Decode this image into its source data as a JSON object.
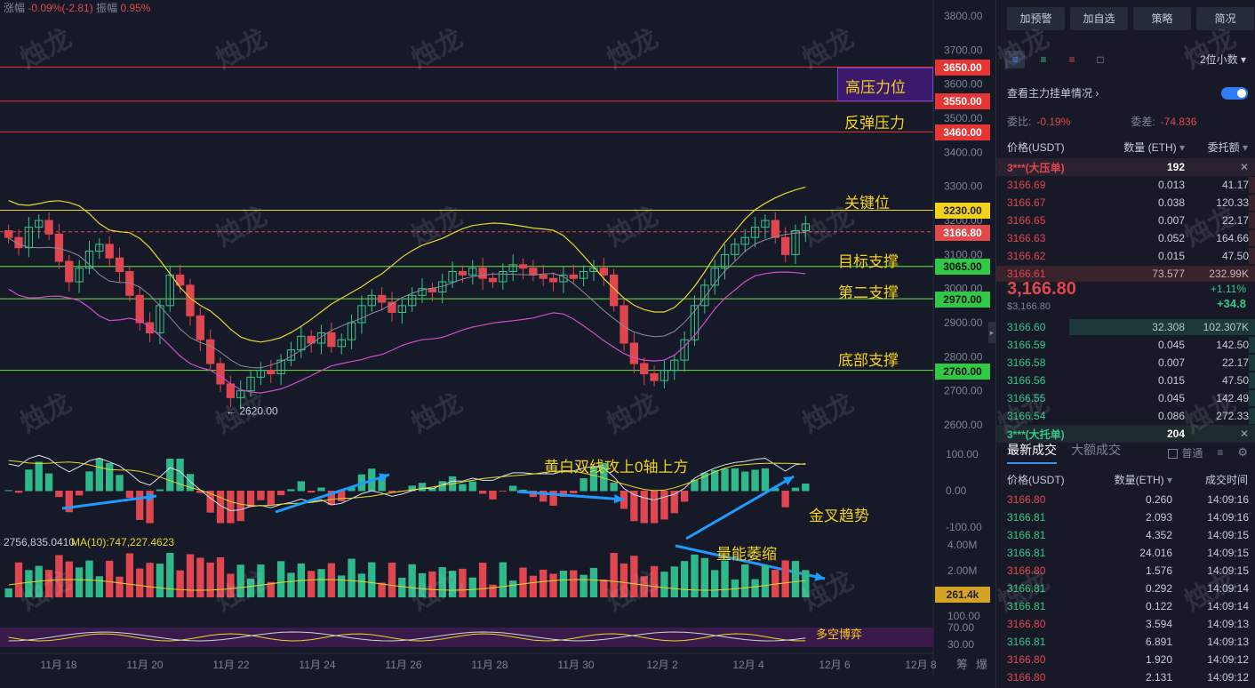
{
  "topbar": {
    "change_label": "涨幅",
    "change_value": "-0.09%(-2.81)",
    "amplitude_label": "振幅",
    "amplitude_value": "0.95%"
  },
  "price_axis": [
    "3800.00",
    "3700.00",
    "3600.00",
    "3500.00",
    "3400.00",
    "3300.00",
    "3200.00",
    "3100.00",
    "3000.00",
    "2900.00",
    "2800.00",
    "2700.00",
    "2600.00"
  ],
  "macd_axis": [
    "100.00",
    "0.00",
    "-100.00"
  ],
  "volume_axis": [
    "4.00M",
    "2.00M"
  ],
  "osc_axis": [
    "100.00",
    "70.00",
    "30.00"
  ],
  "date_axis": [
    "11月 18",
    "11月 20",
    "11月 22",
    "11月 24",
    "11月 26",
    "11月 28",
    "11月 30",
    "12月 2",
    "12月 4",
    "12月 6",
    "12月 8"
  ],
  "bottom_right_icons": [
    "筹",
    "爆"
  ],
  "volume_ma_label": "2756,835.0410",
  "volume_ma10_label": "MA(10):747,227.4623",
  "levels": [
    {
      "value": "3650.00",
      "color": "red",
      "price": 3650
    },
    {
      "value": "3550.00",
      "color": "red",
      "price": 3550
    },
    {
      "value": "3460.00",
      "color": "red",
      "price": 3460
    },
    {
      "value": "3230.00",
      "color": "yellow",
      "price": 3230
    },
    {
      "value": "3065.00",
      "color": "green",
      "price": 3065
    },
    {
      "value": "2970.00",
      "color": "green",
      "price": 2970
    },
    {
      "value": "2760.00",
      "color": "green",
      "price": 2760
    }
  ],
  "current_price_label": "3166.80",
  "volume_current_label": "261.4k",
  "low_marker": "← 2620.00",
  "annotations": {
    "high_pressure": "高压力位",
    "rebound_pressure": "反弹压力",
    "key_level": "关键位",
    "target_support": "目标支撑",
    "second_support": "第二支撑",
    "bottom_support": "底部支撑",
    "macd_note": "黄白双线攻上0轴上方",
    "golden_cross": "金叉趋势",
    "volume_shrink": "量能萎缩",
    "bull_bear": "多空博弈"
  },
  "watermark": "烛龙",
  "panel": {
    "buttons": [
      "加预警",
      "加自选",
      "策略",
      "简况"
    ],
    "precision": "2位小数",
    "main_orders_label": "查看主力挂单情况",
    "ratio_label": "委比:",
    "ratio_value": "-0.19%",
    "diff_label": "委差:",
    "diff_value": "-74.836",
    "book_headers": [
      "价格(USDT)",
      "数量 (ETH)",
      "委托额"
    ],
    "ask_big": {
      "label": "3***(大压单)",
      "qty": "192"
    },
    "asks": [
      {
        "price": "3166.69",
        "qty": "0.013",
        "amt": "41.17"
      },
      {
        "price": "3166.67",
        "qty": "0.038",
        "amt": "120.33"
      },
      {
        "price": "3166.65",
        "qty": "0.007",
        "amt": "22.17"
      },
      {
        "price": "3166.63",
        "qty": "0.052",
        "amt": "164.66"
      },
      {
        "price": "3166.62",
        "qty": "0.015",
        "amt": "47.50"
      },
      {
        "price": "3166.61",
        "qty": "73.577",
        "amt": "232.99K"
      }
    ],
    "last_price": "3,166.80",
    "last_price_usd": "$3,166.80",
    "change_pct": "+1.11%",
    "change_abs": "+34.8",
    "bids": [
      {
        "price": "3166.60",
        "qty": "32.308",
        "amt": "102.307K"
      },
      {
        "price": "3166.59",
        "qty": "0.045",
        "amt": "142.50"
      },
      {
        "price": "3166.58",
        "qty": "0.007",
        "amt": "22.17"
      },
      {
        "price": "3166.56",
        "qty": "0.015",
        "amt": "47.50"
      },
      {
        "price": "3166.55",
        "qty": "0.045",
        "amt": "142.49"
      },
      {
        "price": "3166.54",
        "qty": "0.086",
        "amt": "272.33"
      }
    ],
    "bid_big": {
      "label": "3***(大托单)",
      "qty": "204"
    },
    "tab_latest": "最新成交",
    "tab_large": "大额成交",
    "normal_label": "普通",
    "trade_headers": [
      "价格(USDT)",
      "数量(ETH)",
      "成交时间"
    ],
    "trades": [
      {
        "price": "3166.80",
        "side": "sell",
        "qty": "0.260",
        "time": "14:09:16"
      },
      {
        "price": "3166.81",
        "side": "buy",
        "qty": "2.093",
        "time": "14:09:16"
      },
      {
        "price": "3166.81",
        "side": "buy",
        "qty": "4.352",
        "time": "14:09:15"
      },
      {
        "price": "3166.81",
        "side": "buy",
        "qty": "24.016",
        "time": "14:09:15"
      },
      {
        "price": "3166.80",
        "side": "sell",
        "qty": "1.576",
        "time": "14:09:15"
      },
      {
        "price": "3166.81",
        "side": "buy",
        "qty": "0.292",
        "time": "14:09:14"
      },
      {
        "price": "3166.81",
        "side": "buy",
        "qty": "0.122",
        "time": "14:09:14"
      },
      {
        "price": "3166.80",
        "side": "sell",
        "qty": "3.594",
        "time": "14:09:13"
      },
      {
        "price": "3166.81",
        "side": "buy",
        "qty": "6.891",
        "time": "14:09:13"
      },
      {
        "price": "3166.80",
        "side": "sell",
        "qty": "1.920",
        "time": "14:09:12"
      },
      {
        "price": "3166.80",
        "side": "sell",
        "qty": "2.131",
        "time": "14:09:12"
      }
    ]
  },
  "colors": {
    "up": "#31c88b",
    "down": "#e0464f",
    "accent": "#3d8ef5",
    "annotation": "#f2d21a"
  },
  "chart_data": {
    "type": "candlestick",
    "symbol_quote": "USDT",
    "ylim": [
      2600,
      3800
    ],
    "x_ticks": [
      "11月 18",
      "11月 20",
      "11月 22",
      "11月 24",
      "11月 26",
      "11月 28",
      "11月 30",
      "12月 2",
      "12月 4",
      "12月 6",
      "12月 8"
    ],
    "close_series": [
      3150,
      3120,
      3180,
      3200,
      3160,
      3080,
      3020,
      3060,
      3110,
      3130,
      3090,
      3050,
      2980,
      2900,
      2870,
      2950,
      3040,
      3010,
      2920,
      2850,
      2780,
      2720,
      2680,
      2700,
      2740,
      2760,
      2750,
      2790,
      2820,
      2860,
      2840,
      2870,
      2830,
      2850,
      2900,
      2950,
      2980,
      2960,
      2930,
      2950,
      2980,
      3000,
      2990,
      3020,
      3050,
      3040,
      3060,
      3030,
      3020,
      3050,
      3070,
      3060,
      3040,
      3030,
      3020,
      3040,
      3030,
      3050,
      3060,
      3040,
      2950,
      2840,
      2780,
      2750,
      2730,
      2760,
      2790,
      2850,
      2950,
      3010,
      3060,
      3100,
      3130,
      3150,
      3180,
      3200,
      3150,
      3100,
      3170,
      3190
    ],
    "levels": [
      3650,
      3550,
      3460,
      3230,
      3065,
      2970,
      2760
    ],
    "current": 3166.8,
    "low_marker": 2620
  }
}
